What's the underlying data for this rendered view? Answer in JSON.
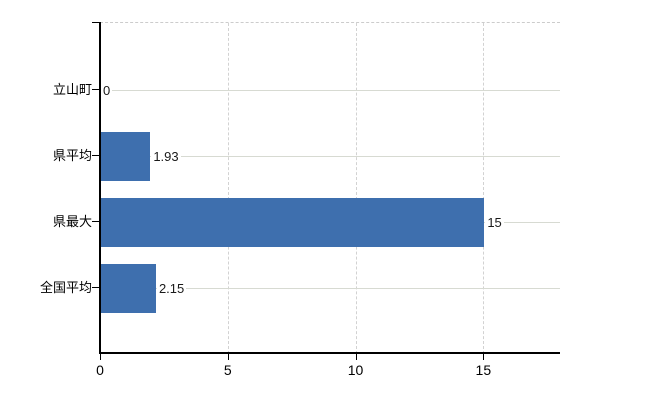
{
  "chart_data": {
    "type": "bar",
    "orientation": "horizontal",
    "title": "",
    "categories": [
      "立山町",
      "県平均",
      "県最大",
      "全国平均"
    ],
    "values": [
      0,
      1.93,
      15,
      2.15
    ],
    "value_labels": [
      "0",
      "1.93",
      "15",
      "2.15"
    ],
    "x_ticks": [
      0,
      5,
      10,
      15
    ],
    "x_tick_labels": [
      "0",
      "5",
      "10",
      "15"
    ],
    "xlim": [
      0,
      18
    ],
    "xlabel": "",
    "ylabel": "",
    "grid": true,
    "legend": false,
    "bar_color": "#3e6fae",
    "grid_color": "#d7dad2",
    "axis_color": "#000000",
    "background_color": "#ffffff"
  }
}
